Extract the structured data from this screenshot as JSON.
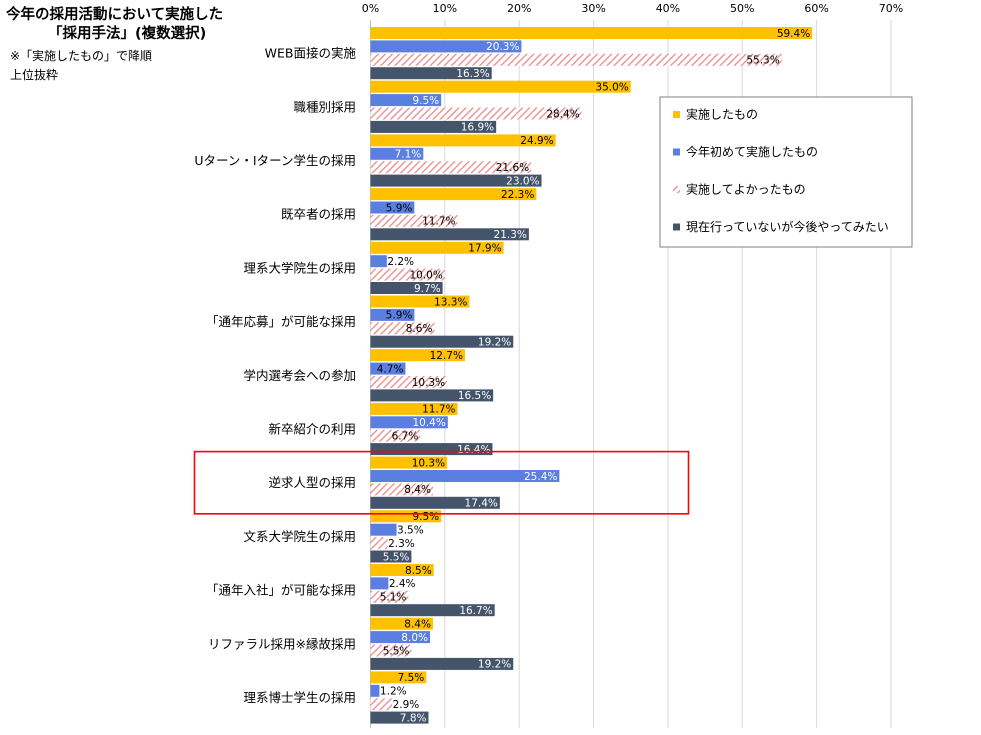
{
  "chart_data": {
    "type": "bar",
    "orientation": "horizontal",
    "title": [
      "今年の採用活動において実施した",
      "「採用手法」(複数選択)"
    ],
    "note": [
      "※「実施したもの」で降順",
      "上位抜粋"
    ],
    "categories": [
      "WEB面接の実施",
      "職種別採用",
      "Uターン・Iターン学生の採用",
      "既卒者の採用",
      "理系大学院生の採用",
      "「通年応募」が可能な採用",
      "学内選考会への参加",
      "新卒紹介の利用",
      "逆求人型の採用",
      "文系大学院生の採用",
      "「通年入社」が可能な採用",
      "リファラル採用※縁故採用",
      "理系博士学生の採用"
    ],
    "series": [
      {
        "name": "実施したもの",
        "color": "#FFC000",
        "pattern": "solid",
        "values": [
          59.4,
          35.0,
          24.9,
          22.3,
          17.9,
          13.3,
          12.7,
          11.7,
          10.3,
          9.5,
          8.5,
          8.4,
          7.5
        ]
      },
      {
        "name": "今年初めて実施したもの",
        "color": "#5B7FE0",
        "pattern": "solid",
        "values": [
          20.3,
          9.5,
          7.1,
          5.9,
          2.2,
          5.9,
          4.7,
          10.4,
          25.4,
          3.5,
          2.4,
          8.0,
          1.2
        ]
      },
      {
        "name": "実施してよかったもの",
        "color": "#E8A0A0",
        "pattern": "hatch",
        "values": [
          55.3,
          28.4,
          21.6,
          11.7,
          10.0,
          8.6,
          10.3,
          6.7,
          8.4,
          2.3,
          5.1,
          5.5,
          2.9
        ]
      },
      {
        "name": "現在行っていないが今後やってみたい",
        "color": "#44546A",
        "pattern": "solid",
        "values": [
          16.3,
          16.9,
          23.0,
          21.3,
          9.7,
          19.2,
          16.5,
          16.4,
          17.4,
          5.5,
          16.7,
          19.2,
          7.8
        ]
      }
    ],
    "xlim": [
      0,
      70
    ],
    "ticks": [
      0,
      10,
      20,
      30,
      40,
      50,
      60,
      70
    ],
    "tick_format": "%",
    "grid": true,
    "legend_position": "right",
    "highlight_category": "逆求人型の採用",
    "highlight_color": "#FF0000"
  }
}
